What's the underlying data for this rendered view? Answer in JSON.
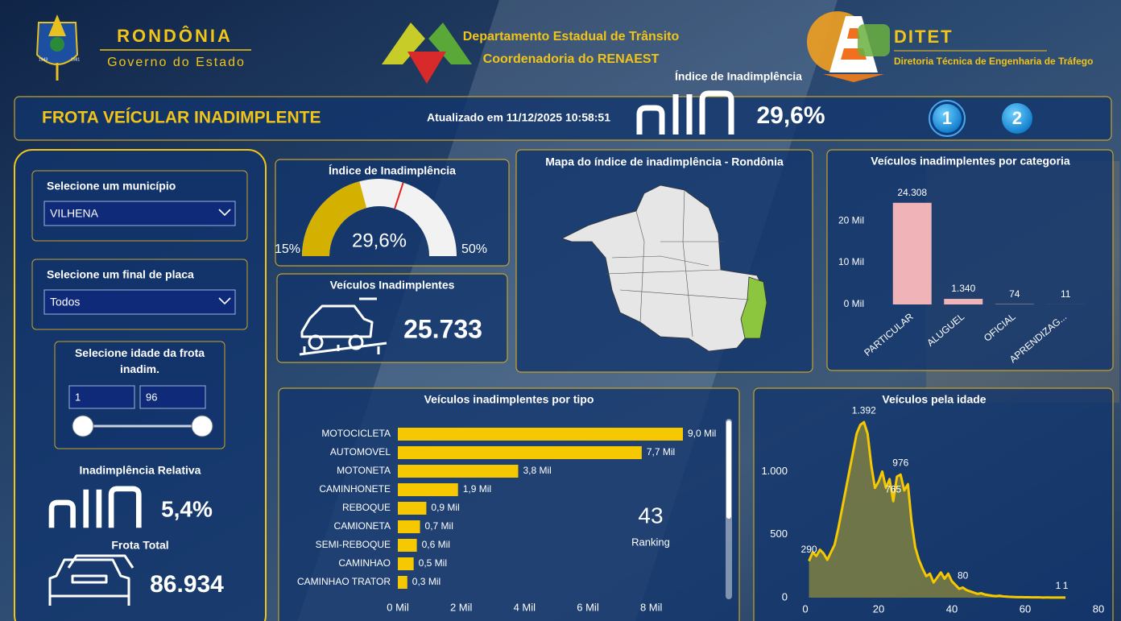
{
  "header": {
    "state": "RONDÔNIA",
    "government": "Governo do Estado",
    "emblem_years": [
      "1943",
      "1981"
    ],
    "department": "Departamento Estadual de Trânsito",
    "coordination": "Coordenadoria do RENAEST",
    "ditet": "DITET",
    "ditet_name": "Diretoria Técnica de Engenharia de Tráfego",
    "index_label": "Índice de Inadimplência"
  },
  "title_bar": {
    "title": "FROTA VEÍCULAR INADIMPLENTE",
    "updated": "Atualizado em 11/12/2025 10:58:51",
    "index_value": "29,6%",
    "pages": [
      "1",
      "2"
    ]
  },
  "filters": {
    "municipality": {
      "label": "Selecione um município",
      "value": "VILHENA"
    },
    "plate": {
      "label": "Selecione um final de placa",
      "value": "Todos"
    },
    "age": {
      "label": "Selecione idade da frota inadim.",
      "min": "1",
      "max": "96"
    }
  },
  "kpis": {
    "relative": {
      "label": "Inadimplência Relativa",
      "value": "5,4%"
    },
    "total": {
      "label": "Frota Total",
      "value": "86.934"
    },
    "vehicles": {
      "label": "Veículos Inadimplentes",
      "value": "25.733"
    }
  },
  "map": {
    "title": "Mapa do índice de inadimplência - Rondônia"
  },
  "chart_data": [
    {
      "type": "gauge",
      "title": "Índice de Inadimplência",
      "values": [
        29.6
      ],
      "value_labels": [
        "29,6%"
      ],
      "ylim": [
        15,
        50
      ],
      "yticks": [
        {
          "value": 15,
          "label": "15%"
        },
        {
          "value": 50,
          "label": "50%"
        }
      ],
      "target": 36,
      "color": "#d4b000",
      "track_color": "#f2f2f2",
      "target_color": "#e02020"
    },
    {
      "type": "bar",
      "title": "Veículos inadimplentes por categoria",
      "categories": [
        "PARTICULAR",
        "ALUGUEL",
        "OFICIAL",
        "APRENDIZAG..."
      ],
      "values": [
        24308,
        1340,
        74,
        11
      ],
      "value_labels": [
        "24.308",
        "1.340",
        "74",
        "11"
      ],
      "ylim": [
        0,
        26000
      ],
      "yticks": [
        {
          "value": 0,
          "label": "0 Mil"
        },
        {
          "value": 10000,
          "label": "10 Mil"
        },
        {
          "value": 20000,
          "label": "20 Mil"
        }
      ],
      "color": "#f0b4b8"
    },
    {
      "type": "hbar",
      "title": "Veículos inadimplentes por tipo",
      "categories": [
        "MOTOCICLETA",
        "AUTOMOVEL",
        "MOTONETA",
        "CAMINHONETE",
        "REBOQUE",
        "CAMIONETA",
        "SEMI-REBOQUE",
        "CAMINHAO",
        "CAMINHAO TRATOR"
      ],
      "values": [
        9000,
        7700,
        3800,
        1900,
        900,
        700,
        600,
        500,
        300
      ],
      "value_labels": [
        "9,0 Mil",
        "7,7 Mil",
        "3,8 Mil",
        "1,9 Mil",
        "0,9 Mil",
        "0,7 Mil",
        "0,6 Mil",
        "0,5 Mil",
        "0,3 Mil"
      ],
      "xlim": [
        0,
        9000
      ],
      "xticks": [
        {
          "value": 0,
          "label": "0 Mil"
        },
        {
          "value": 2000,
          "label": "2 Mil"
        },
        {
          "value": 4000,
          "label": "4 Mil"
        },
        {
          "value": 6000,
          "label": "6 Mil"
        },
        {
          "value": 8000,
          "label": "8 Mil"
        }
      ],
      "color": "#f5c800",
      "ranking_value": "43",
      "ranking_label": "Ranking"
    },
    {
      "type": "area",
      "title": "Veículos pela idade",
      "x": [
        1,
        2,
        3,
        4,
        5,
        6,
        7,
        8,
        9,
        10,
        11,
        12,
        13,
        14,
        15,
        16,
        17,
        18,
        19,
        20,
        21,
        22,
        23,
        24,
        25,
        26,
        27,
        28,
        29,
        30,
        31,
        32,
        33,
        34,
        35,
        36,
        37,
        38,
        39,
        40,
        41,
        42,
        43,
        44,
        45,
        46,
        47,
        48,
        49,
        50,
        51,
        52,
        53,
        54,
        55,
        56,
        57,
        58,
        59,
        60,
        61,
        62,
        63,
        64,
        65,
        66,
        67,
        68,
        69,
        70,
        71
      ],
      "values": [
        290,
        360,
        330,
        380,
        350,
        300,
        360,
        420,
        550,
        700,
        850,
        1000,
        1150,
        1300,
        1370,
        1392,
        1300,
        1050,
        870,
        920,
        1000,
        870,
        940,
        765,
        960,
        976,
        850,
        900,
        600,
        400,
        300,
        230,
        170,
        190,
        120,
        160,
        200,
        150,
        190,
        130,
        100,
        70,
        80,
        60,
        50,
        40,
        30,
        35,
        25,
        20,
        15,
        12,
        15,
        10,
        8,
        6,
        5,
        4,
        4,
        3,
        3,
        2,
        2,
        2,
        1,
        2,
        1,
        1,
        1,
        1,
        1
      ],
      "value_labels": [
        "290",
        null,
        null,
        null,
        null,
        null,
        null,
        null,
        null,
        null,
        null,
        null,
        null,
        null,
        null,
        "1.392",
        null,
        null,
        null,
        null,
        null,
        null,
        null,
        "765",
        null,
        "976",
        null,
        null,
        null,
        null,
        null,
        null,
        null,
        null,
        null,
        null,
        null,
        null,
        null,
        null,
        null,
        null,
        "80",
        null,
        null,
        null,
        null,
        null,
        null,
        null,
        null,
        null,
        null,
        null,
        null,
        null,
        null,
        null,
        null,
        null,
        null,
        null,
        null,
        null,
        null,
        null,
        null,
        null,
        "1",
        null,
        "1"
      ],
      "xlim": [
        0,
        80
      ],
      "xticks": [
        0,
        20,
        40,
        60,
        80
      ],
      "ylim": [
        0,
        1450
      ],
      "yticks": [
        0,
        500,
        {
          "value": 1000,
          "label": "1.000"
        }
      ],
      "color": "#f5c800",
      "fill": "#8c8a3c"
    }
  ]
}
